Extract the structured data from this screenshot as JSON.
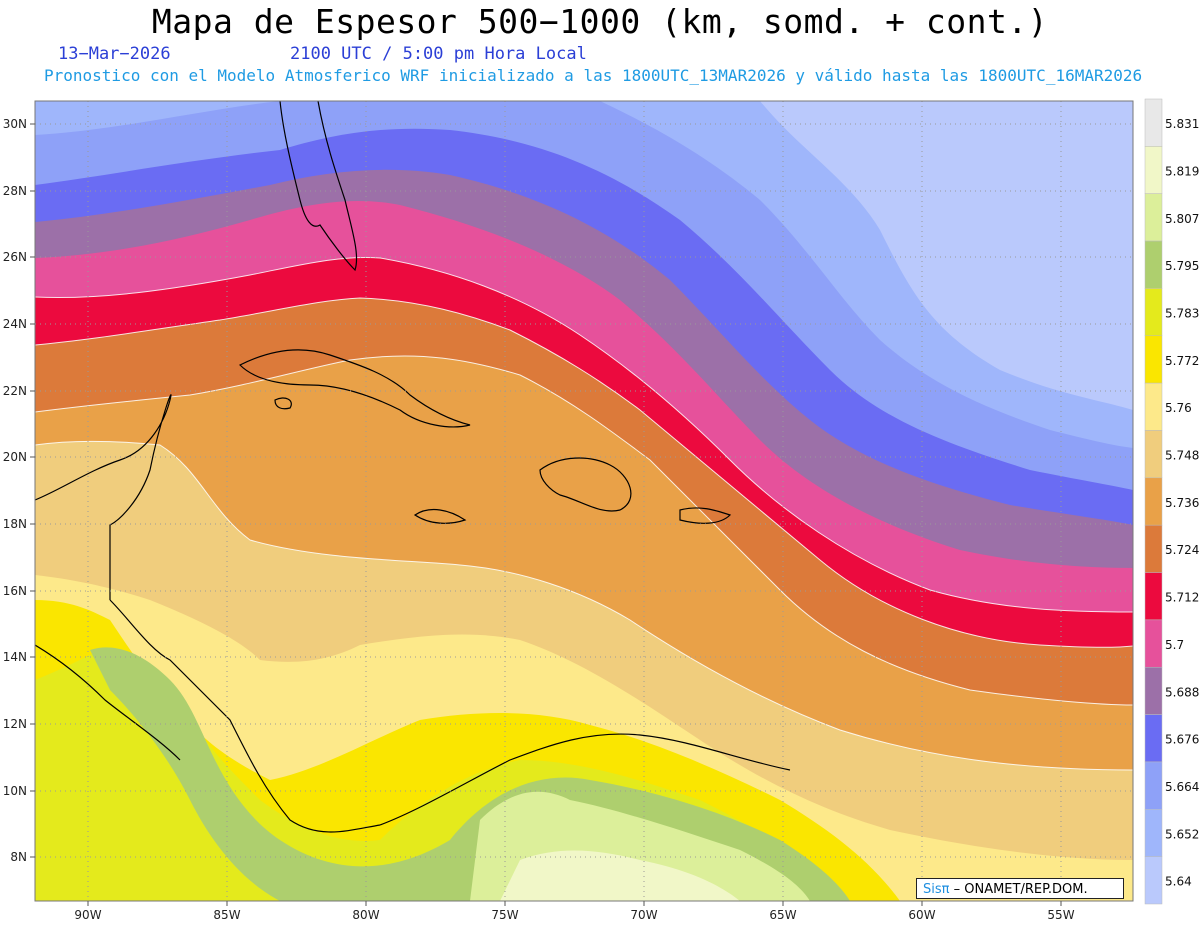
{
  "header": {
    "title": "Mapa de Espesor 500−1000 (km, somd. + cont.)",
    "date": "13−Mar−2026",
    "valid_time": "2100 UTC / 5:00 pm Hora Local",
    "subtitle": "Pronostico con el Modelo Atmosferico WRF inicializado a las 1800UTC_13MAR2026 y válido hasta las  1800UTC_16MAR2026"
  },
  "map": {
    "lat_labels": [
      "30N",
      "28N",
      "26N",
      "24N",
      "22N",
      "20N",
      "18N",
      "16N",
      "14N",
      "12N",
      "10N",
      "8N"
    ],
    "lon_labels": [
      "90W",
      "85W",
      "80W",
      "75W",
      "70W",
      "65W",
      "60W",
      "55W"
    ]
  },
  "legend": {
    "levels": [
      "5.831",
      "5.819",
      "5.807",
      "5.795",
      "5.783",
      "5.772",
      "5.76",
      "5.748",
      "5.736",
      "5.724",
      "5.712",
      "5.7",
      "5.688",
      "5.676",
      "5.664",
      "5.652",
      "5.64"
    ],
    "colors": [
      "#e8e8e8",
      "#f1f7c8",
      "#dcef9a",
      "#aecf6e",
      "#e4ea1c",
      "#fae600",
      "#fde98a",
      "#f0cd7d",
      "#e9a148",
      "#dc7a3a",
      "#ec0a3e",
      "#e6519b",
      "#9c70a8",
      "#6a6cf3",
      "#8ea1f8",
      "#9fb6fb",
      "#bac9fc"
    ]
  },
  "credit": {
    "brand": "Sisπ",
    "text": " – ONAMET/REP.DOM."
  }
}
